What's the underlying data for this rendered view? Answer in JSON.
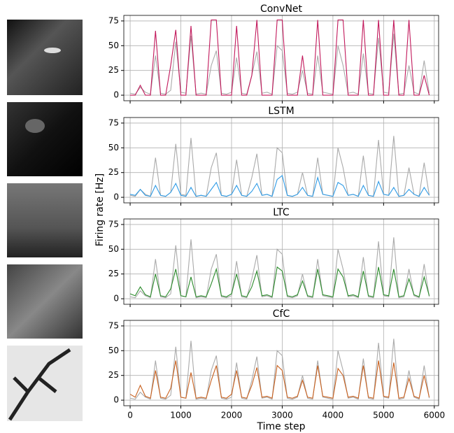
{
  "chart_data": [
    {
      "type": "line",
      "title": "ConvNet",
      "x": [
        0,
        100,
        200,
        300,
        400,
        500,
        600,
        700,
        800,
        900,
        1000,
        1100,
        1200,
        1300,
        1400,
        1500,
        1600,
        1700,
        1800,
        1900,
        2000,
        2100,
        2200,
        2300,
        2400,
        2500,
        2600,
        2700,
        2800,
        2900,
        3000,
        3100,
        3200,
        3300,
        3400,
        3500,
        3600,
        3700,
        3800,
        3900,
        4000,
        4100,
        4200,
        4300,
        4400,
        4500,
        4600,
        4700,
        4800,
        4900,
        5000,
        5100,
        5200,
        5300,
        5400,
        5500,
        5600,
        5700,
        5800,
        5900
      ],
      "series": [
        {
          "color": "#aaaaaa",
          "values": [
            2,
            1,
            8,
            3,
            1,
            40,
            2,
            1,
            5,
            54,
            3,
            2,
            60,
            1,
            2,
            1,
            30,
            45,
            2,
            1,
            3,
            38,
            2,
            1,
            20,
            44,
            2,
            3,
            1,
            50,
            45,
            2,
            1,
            3,
            25,
            2,
            1,
            40,
            3,
            2,
            1,
            50,
            30,
            2,
            3,
            1,
            42,
            2,
            1,
            58,
            3,
            2,
            62,
            1,
            2,
            30,
            3,
            1,
            35,
            2
          ]
        },
        {
          "color": "#c2185b",
          "values": [
            0,
            0,
            10,
            0,
            0,
            65,
            0,
            0,
            30,
            66,
            0,
            0,
            70,
            0,
            0,
            0,
            76,
            76,
            0,
            0,
            0,
            70,
            0,
            0,
            20,
            76,
            0,
            0,
            0,
            76,
            76,
            0,
            0,
            0,
            40,
            0,
            0,
            76,
            0,
            0,
            0,
            76,
            76,
            0,
            0,
            0,
            76,
            0,
            0,
            76,
            0,
            0,
            76,
            0,
            0,
            76,
            0,
            0,
            20,
            0
          ]
        }
      ],
      "xlim": [
        -125,
        6085
      ],
      "ylim": [
        -5.6,
        80.6
      ],
      "yticks": [
        0,
        25,
        50,
        75
      ],
      "xticks": [
        0,
        1000,
        2000,
        3000,
        4000,
        5000,
        6000
      ],
      "show_xtick_labels": false,
      "grid": true
    },
    {
      "type": "line",
      "title": "LSTM",
      "ylabel": "Firing rate [Hz]",
      "x": [
        0,
        100,
        200,
        300,
        400,
        500,
        600,
        700,
        800,
        900,
        1000,
        1100,
        1200,
        1300,
        1400,
        1500,
        1600,
        1700,
        1800,
        1900,
        2000,
        2100,
        2200,
        2300,
        2400,
        2500,
        2600,
        2700,
        2800,
        2900,
        3000,
        3100,
        3200,
        3300,
        3400,
        3500,
        3600,
        3700,
        3800,
        3900,
        4000,
        4100,
        4200,
        4300,
        4400,
        4500,
        4600,
        4700,
        4800,
        4900,
        5000,
        5100,
        5200,
        5300,
        5400,
        5500,
        5600,
        5700,
        5800,
        5900
      ],
      "series": [
        {
          "color": "#aaaaaa",
          "values": [
            2,
            1,
            8,
            3,
            1,
            40,
            2,
            1,
            5,
            54,
            3,
            2,
            60,
            1,
            2,
            1,
            30,
            45,
            2,
            1,
            3,
            38,
            2,
            1,
            20,
            44,
            2,
            3,
            1,
            50,
            45,
            2,
            1,
            3,
            25,
            2,
            1,
            40,
            3,
            2,
            1,
            50,
            30,
            2,
            3,
            1,
            42,
            2,
            1,
            58,
            3,
            2,
            62,
            1,
            2,
            30,
            3,
            1,
            35,
            2
          ]
        },
        {
          "color": "#2e9be6",
          "values": [
            3,
            2,
            8,
            2,
            1,
            12,
            2,
            1,
            5,
            14,
            2,
            1,
            10,
            1,
            2,
            1,
            8,
            15,
            2,
            1,
            3,
            12,
            2,
            1,
            6,
            14,
            2,
            3,
            1,
            18,
            22,
            2,
            1,
            3,
            10,
            2,
            1,
            20,
            3,
            2,
            1,
            15,
            12,
            2,
            3,
            1,
            12,
            2,
            1,
            16,
            3,
            2,
            10,
            1,
            2,
            8,
            3,
            1,
            10,
            2
          ]
        }
      ],
      "xlim": [
        -125,
        6085
      ],
      "ylim": [
        -5.6,
        80.6
      ],
      "yticks": [
        0,
        25,
        50,
        75
      ],
      "xticks": [
        0,
        1000,
        2000,
        3000,
        4000,
        5000,
        6000
      ],
      "show_xtick_labels": false,
      "grid": true
    },
    {
      "type": "line",
      "title": "LTC",
      "x": [
        0,
        100,
        200,
        300,
        400,
        500,
        600,
        700,
        800,
        900,
        1000,
        1100,
        1200,
        1300,
        1400,
        1500,
        1600,
        1700,
        1800,
        1900,
        2000,
        2100,
        2200,
        2300,
        2400,
        2500,
        2600,
        2700,
        2800,
        2900,
        3000,
        3100,
        3200,
        3300,
        3400,
        3500,
        3600,
        3700,
        3800,
        3900,
        4000,
        4100,
        4200,
        4300,
        4400,
        4500,
        4600,
        4700,
        4800,
        4900,
        5000,
        5100,
        5200,
        5300,
        5400,
        5500,
        5600,
        5700,
        5800,
        5900
      ],
      "series": [
        {
          "color": "#aaaaaa",
          "values": [
            2,
            1,
            8,
            3,
            1,
            40,
            2,
            1,
            5,
            54,
            3,
            2,
            60,
            1,
            2,
            1,
            30,
            45,
            2,
            1,
            3,
            38,
            2,
            1,
            20,
            44,
            2,
            3,
            1,
            50,
            45,
            2,
            1,
            3,
            25,
            2,
            1,
            40,
            3,
            2,
            1,
            50,
            30,
            2,
            3,
            1,
            42,
            2,
            1,
            58,
            3,
            2,
            62,
            1,
            2,
            30,
            3,
            1,
            35,
            2
          ]
        },
        {
          "color": "#2a8a2a",
          "values": [
            5,
            3,
            12,
            4,
            2,
            25,
            3,
            2,
            10,
            30,
            3,
            2,
            22,
            2,
            3,
            2,
            15,
            30,
            3,
            2,
            5,
            25,
            3,
            2,
            12,
            28,
            3,
            4,
            2,
            32,
            28,
            3,
            2,
            4,
            18,
            3,
            2,
            30,
            4,
            3,
            2,
            30,
            22,
            3,
            4,
            2,
            28,
            3,
            2,
            32,
            4,
            3,
            30,
            2,
            3,
            20,
            4,
            2,
            22,
            3
          ]
        }
      ],
      "xlim": [
        -125,
        6085
      ],
      "ylim": [
        -5.6,
        80.6
      ],
      "yticks": [
        0,
        25,
        50,
        75
      ],
      "xticks": [
        0,
        1000,
        2000,
        3000,
        4000,
        5000,
        6000
      ],
      "show_xtick_labels": false,
      "grid": true
    },
    {
      "type": "line",
      "title": "CfC",
      "xlabel": "Time step",
      "x": [
        0,
        100,
        200,
        300,
        400,
        500,
        600,
        700,
        800,
        900,
        1000,
        1100,
        1200,
        1300,
        1400,
        1500,
        1600,
        1700,
        1800,
        1900,
        2000,
        2100,
        2200,
        2300,
        2400,
        2500,
        2600,
        2700,
        2800,
        2900,
        3000,
        3100,
        3200,
        3300,
        3400,
        3500,
        3600,
        3700,
        3800,
        3900,
        4000,
        4100,
        4200,
        4300,
        4400,
        4500,
        4600,
        4700,
        4800,
        4900,
        5000,
        5100,
        5200,
        5300,
        5400,
        5500,
        5600,
        5700,
        5800,
        5900
      ],
      "series": [
        {
          "color": "#aaaaaa",
          "values": [
            2,
            1,
            8,
            3,
            1,
            40,
            2,
            1,
            5,
            54,
            3,
            2,
            60,
            1,
            2,
            1,
            30,
            45,
            2,
            1,
            3,
            38,
            2,
            1,
            20,
            44,
            2,
            3,
            1,
            50,
            45,
            2,
            1,
            3,
            25,
            2,
            1,
            40,
            3,
            2,
            1,
            50,
            30,
            2,
            3,
            1,
            42,
            2,
            1,
            58,
            3,
            2,
            62,
            1,
            2,
            30,
            3,
            1,
            35,
            2
          ]
        },
        {
          "color": "#c8601e",
          "values": [
            6,
            3,
            15,
            4,
            2,
            30,
            3,
            2,
            12,
            40,
            3,
            2,
            28,
            2,
            3,
            2,
            20,
            35,
            3,
            2,
            6,
            30,
            3,
            2,
            15,
            33,
            3,
            4,
            2,
            35,
            30,
            3,
            2,
            4,
            20,
            3,
            2,
            35,
            4,
            3,
            2,
            32,
            25,
            3,
            4,
            2,
            35,
            3,
            2,
            40,
            4,
            3,
            38,
            2,
            3,
            22,
            4,
            2,
            25,
            3
          ]
        }
      ],
      "xlim": [
        -125,
        6085
      ],
      "ylim": [
        -5.6,
        80.6
      ],
      "yticks": [
        0,
        25,
        50,
        75
      ],
      "xticks": [
        0,
        1000,
        2000,
        3000,
        4000,
        5000,
        6000
      ],
      "show_xtick_labels": true,
      "grid": true
    }
  ]
}
